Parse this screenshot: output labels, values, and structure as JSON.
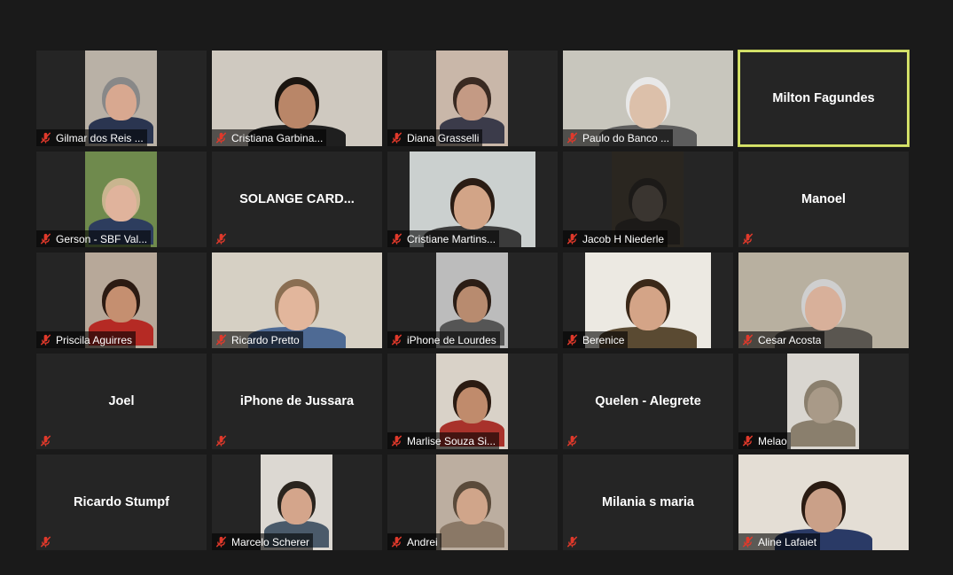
{
  "participants": [
    {
      "name": "Gilmar dos Reis ...",
      "video": true,
      "bg": "#b9b1a6",
      "skin": "#d8a890",
      "shirt": "#2a3550",
      "hair": "#888"
    },
    {
      "name": "Cristiana Garbina...",
      "video": true,
      "bg": "#cfc9c0",
      "skin": "#b98668",
      "shirt": "#1f1f1f",
      "hair": "#1b1510"
    },
    {
      "name": "Diana Grasselli",
      "video": true,
      "bg": "#c9b7a9",
      "skin": "#c49a84",
      "shirt": "#3b3b4a",
      "hair": "#3a2a22"
    },
    {
      "name": "Paulo do Banco ...",
      "video": true,
      "bg": "#c8c6bd",
      "skin": "#dcc0aa",
      "shirt": "#5d5d5d",
      "hair": "#e8e8e8"
    },
    {
      "name": "Milton Fagundes",
      "video": false,
      "active": true
    },
    {
      "name": "Gerson - SBF Val...",
      "video": true,
      "bg": "#6f8a4d",
      "skin": "#e0b39c",
      "shirt": "#2d3d5e",
      "hair": "#c9b58f"
    },
    {
      "name": "SOLANGE  CARD...",
      "video": false
    },
    {
      "name": "Cristiane Martins...",
      "video": true,
      "bg": "#cbd0cf",
      "skin": "#d2a487",
      "shirt": "#3b3b3b",
      "hair": "#2a1c14"
    },
    {
      "name": "Jacob H Niederle",
      "video": true,
      "bg": "#2a2620",
      "skin": "#3a3530",
      "shirt": "#1c1a18",
      "hair": "#1c1a18"
    },
    {
      "name": "Manoel",
      "video": false
    },
    {
      "name": "Priscila Aguirres",
      "video": true,
      "bg": "#b7a899",
      "skin": "#c58f70",
      "shirt": "#b52a24",
      "hair": "#2b1a12"
    },
    {
      "name": "Ricardo Pretto",
      "video": true,
      "bg": "#d6d0c4",
      "skin": "#e2b69c",
      "shirt": "#4e6a94",
      "hair": "#8a6e52"
    },
    {
      "name": "iPhone de Lourdes",
      "video": true,
      "bg": "#bcbcbc",
      "skin": "#b88b6f",
      "shirt": "#555",
      "hair": "#2b1d15"
    },
    {
      "name": "Berenice",
      "video": true,
      "bg": "#ece9e2",
      "skin": "#d4a487",
      "shirt": "#5a4a32",
      "hair": "#3b2818"
    },
    {
      "name": "Cesar Acosta",
      "video": true,
      "bg": "#b8b0a0",
      "skin": "#d8b09a",
      "shirt": "#5a5650",
      "hair": "#cfcfcf"
    },
    {
      "name": "Joel",
      "video": false
    },
    {
      "name": "iPhone de Jussara",
      "video": false
    },
    {
      "name": "Marlise Souza Si...",
      "video": true,
      "bg": "#d9d2c8",
      "skin": "#c08b6c",
      "shirt": "#a8322b",
      "hair": "#2b1b12"
    },
    {
      "name": "Quelen - Alegrete",
      "video": false
    },
    {
      "name": "Melao",
      "video": true,
      "bg": "#d9d6d0",
      "skin": "#a99a88",
      "shirt": "#8a7f6d",
      "hair": "#8a7f6d"
    },
    {
      "name": "Ricardo Stumpf",
      "video": false
    },
    {
      "name": "Marcelo Scherer",
      "video": true,
      "bg": "#dcd8d2",
      "skin": "#d4a58b",
      "shirt": "#4a5a6a",
      "hair": "#2a241e"
    },
    {
      "name": "Andrei",
      "video": true,
      "bg": "#bcaea0",
      "skin": "#d0a58a",
      "shirt": "#8a7866",
      "hair": "#5a4a3a"
    },
    {
      "name": "Milania s maria",
      "video": false
    },
    {
      "name": "Aline Lafaiet",
      "video": true,
      "bg": "#e4ded5",
      "skin": "#caa088",
      "shirt": "#2a3a66",
      "hair": "#2a1b12"
    }
  ],
  "colors": {
    "mic_muted": "#e0392b",
    "active_border": "#d6e36b"
  }
}
